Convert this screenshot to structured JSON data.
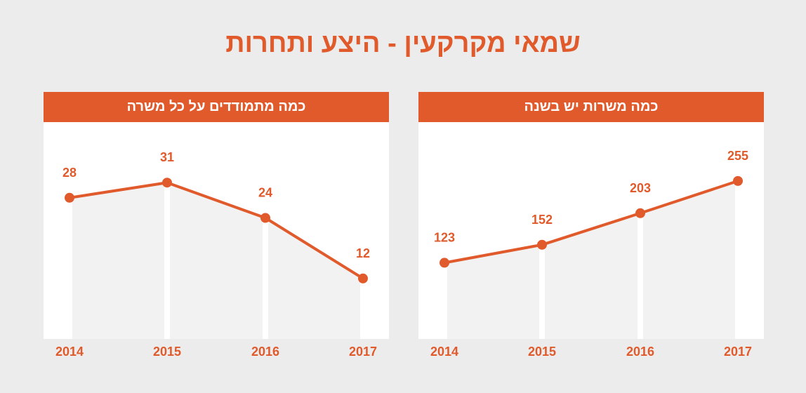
{
  "title": "שמאי מקרקעין - היצע ותחרות",
  "colors": {
    "accent": "#e05a2b",
    "background": "#ececec",
    "area": "#f2f2f2",
    "panel": "#ffffff"
  },
  "chart_data": [
    {
      "type": "line",
      "title": "כמה מתמודדים על כל משרה",
      "categories": [
        "2014",
        "2015",
        "2016",
        "2017"
      ],
      "values": [
        28,
        31,
        24,
        12
      ],
      "ylim": [
        0,
        43
      ],
      "grid": false,
      "legend": "none"
    },
    {
      "type": "line",
      "title": "כמה משרות יש בשנה",
      "categories": [
        "2014",
        "2015",
        "2016",
        "2017"
      ],
      "values": [
        123,
        152,
        203,
        255
      ],
      "ylim": [
        0,
        350
      ],
      "grid": false,
      "legend": "none"
    }
  ]
}
